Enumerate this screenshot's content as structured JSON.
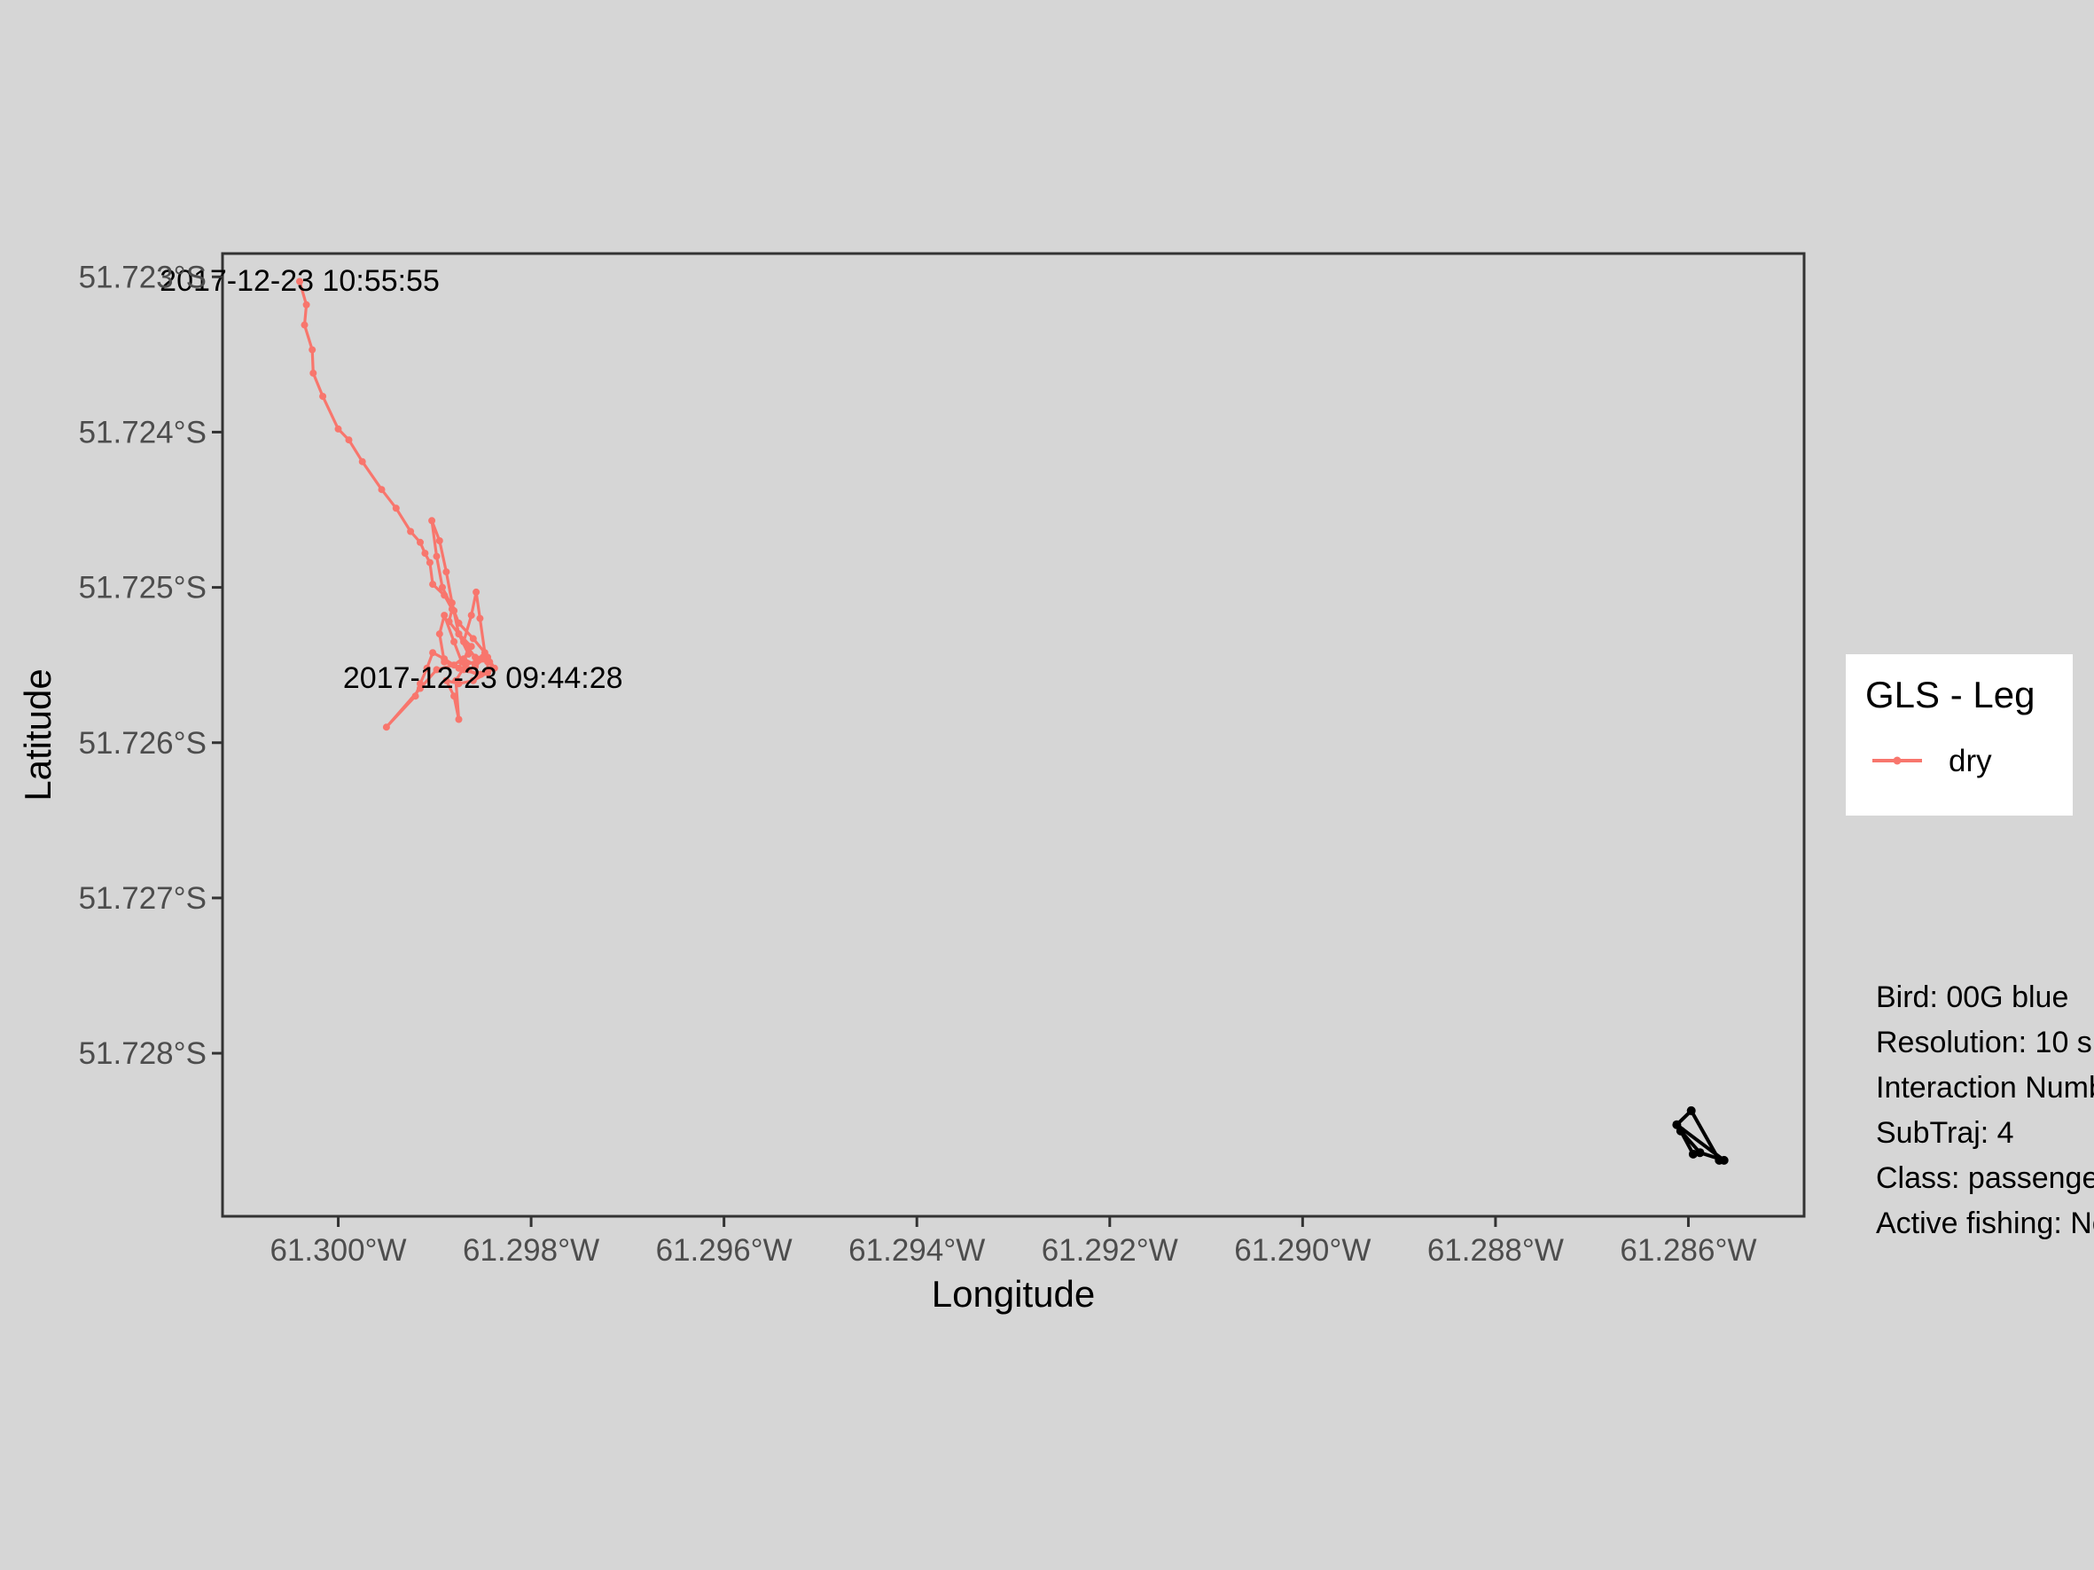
{
  "chart_data": {
    "type": "line",
    "xlabel": "Longitude",
    "ylabel": "Latitude",
    "xlim": [
      -61.3012,
      -61.2848
    ],
    "ylim": [
      -51.72905,
      -51.72285
    ],
    "x_ticks": [
      -61.3,
      -61.298,
      -61.296,
      -61.294,
      -61.292,
      -61.29,
      -61.288,
      -61.286
    ],
    "x_tick_labels": [
      "61.300°W",
      "61.298°W",
      "61.296°W",
      "61.294°W",
      "61.292°W",
      "61.290°W",
      "61.288°W",
      "61.286°W"
    ],
    "y_ticks": [
      -51.723,
      -51.724,
      -51.725,
      -51.726,
      -51.727,
      -51.728
    ],
    "y_tick_labels": [
      "51.723°S",
      "51.724°S",
      "51.725°S",
      "51.726°S",
      "51.727°S",
      "51.728°S"
    ],
    "grid": false,
    "legend_position": "right",
    "legend": {
      "title": "GLS - Leg",
      "entries": [
        {
          "label": "dry",
          "color": "#f8766d"
        }
      ]
    },
    "series": [
      {
        "name": "dry",
        "color": "#f8766d",
        "points": [
          [
            -61.3004,
            -51.72303
          ],
          [
            -61.30033,
            -51.72318
          ],
          [
            -61.30035,
            -51.72331
          ],
          [
            -61.30027,
            -51.72347
          ],
          [
            -61.30026,
            -51.72362
          ],
          [
            -61.30016,
            -51.72377
          ],
          [
            -61.3,
            -51.72398
          ],
          [
            -61.29989,
            -51.72405
          ],
          [
            -61.29975,
            -51.72419
          ],
          [
            -61.29955,
            -51.72437
          ],
          [
            -61.2994,
            -51.72449
          ],
          [
            -61.29925,
            -51.72464
          ],
          [
            -61.29915,
            -51.72471
          ],
          [
            -61.2991,
            -51.72478
          ],
          [
            -61.29905,
            -51.72484
          ],
          [
            -61.29902,
            -51.72498
          ],
          [
            -61.2989,
            -51.72505
          ],
          [
            -61.29882,
            -51.72514
          ],
          [
            -61.29885,
            -51.72522
          ],
          [
            -61.29875,
            -51.7253
          ],
          [
            -61.29862,
            -51.72538
          ],
          [
            -61.2987,
            -51.72546
          ],
          [
            -61.29858,
            -51.7255
          ],
          [
            -61.29845,
            -51.72545
          ],
          [
            -61.29838,
            -51.72552
          ],
          [
            -61.29852,
            -51.72556
          ],
          [
            -61.29875,
            -51.72552
          ],
          [
            -61.2989,
            -51.72546
          ],
          [
            -61.29902,
            -51.72542
          ],
          [
            -61.29908,
            -51.72552
          ],
          [
            -61.29915,
            -51.72562
          ],
          [
            -61.2992,
            -51.7257
          ],
          [
            -61.2995,
            -51.7259
          ],
          [
            -61.29915,
            -51.72565
          ],
          [
            -61.29898,
            -51.72553
          ],
          [
            -61.2988,
            -51.7255
          ],
          [
            -61.29865,
            -51.72543
          ],
          [
            -61.29875,
            -51.7253
          ],
          [
            -61.29882,
            -51.7251
          ],
          [
            -61.29888,
            -51.7249
          ],
          [
            -61.29895,
            -51.7247
          ],
          [
            -61.29903,
            -51.72457
          ],
          [
            -61.29898,
            -51.7248
          ],
          [
            -61.29892,
            -51.725
          ],
          [
            -61.2988,
            -51.72515
          ],
          [
            -61.29875,
            -51.72523
          ],
          [
            -61.2986,
            -51.72533
          ],
          [
            -61.29848,
            -51.72542
          ],
          [
            -61.29853,
            -51.7252
          ],
          [
            -61.29857,
            -51.72503
          ],
          [
            -61.29862,
            -51.72518
          ],
          [
            -61.2987,
            -51.72535
          ],
          [
            -61.29858,
            -51.72545
          ],
          [
            -61.2985,
            -51.72545
          ],
          [
            -61.29845,
            -51.72548
          ],
          [
            -61.29845,
            -51.72555
          ],
          [
            -61.2986,
            -51.7256
          ],
          [
            -61.29875,
            -51.72562
          ],
          [
            -61.29888,
            -51.7256
          ],
          [
            -61.2988,
            -51.7257
          ],
          [
            -61.29875,
            -51.72585
          ],
          [
            -61.29878,
            -51.7256
          ],
          [
            -61.29868,
            -51.7255
          ],
          [
            -61.29855,
            -51.72547
          ],
          [
            -61.29843,
            -51.72548
          ],
          [
            -61.2984,
            -51.72552
          ],
          [
            -61.29855,
            -51.72556
          ],
          [
            -61.2987,
            -51.72553
          ],
          [
            -61.2989,
            -51.72548
          ],
          [
            -61.29895,
            -51.7253
          ],
          [
            -61.2989,
            -51.72518
          ],
          [
            -61.2988,
            -51.72535
          ],
          [
            -61.29872,
            -51.72548
          ],
          [
            -61.29865,
            -51.72553
          ],
          [
            -61.29858,
            -51.72551
          ],
          [
            -61.2985,
            -51.72546
          ]
        ]
      },
      {
        "name": "",
        "color": "#000000",
        "points": [
          [
            -61.28595,
            -51.72865
          ],
          [
            -61.28608,
            -51.7285
          ],
          [
            -61.28588,
            -51.72864
          ],
          [
            -61.28563,
            -51.72869
          ],
          [
            -61.28612,
            -51.72846
          ],
          [
            -61.28597,
            -51.72837
          ],
          [
            -61.28568,
            -51.72869
          ]
        ]
      }
    ],
    "annotations": [
      {
        "text": "2017-12-23 10:55:55",
        "x": -61.3004,
        "y": -51.72302
      },
      {
        "text": "2017-12-23 09:44:28",
        "x": -61.2985,
        "y": -51.72558
      }
    ]
  },
  "info": {
    "lines": [
      "Bird: 00G blue",
      "Resolution: 10 s",
      "Interaction Number",
      "SubTraj: 4",
      "Class: passenger",
      "Active fishing: No"
    ]
  }
}
